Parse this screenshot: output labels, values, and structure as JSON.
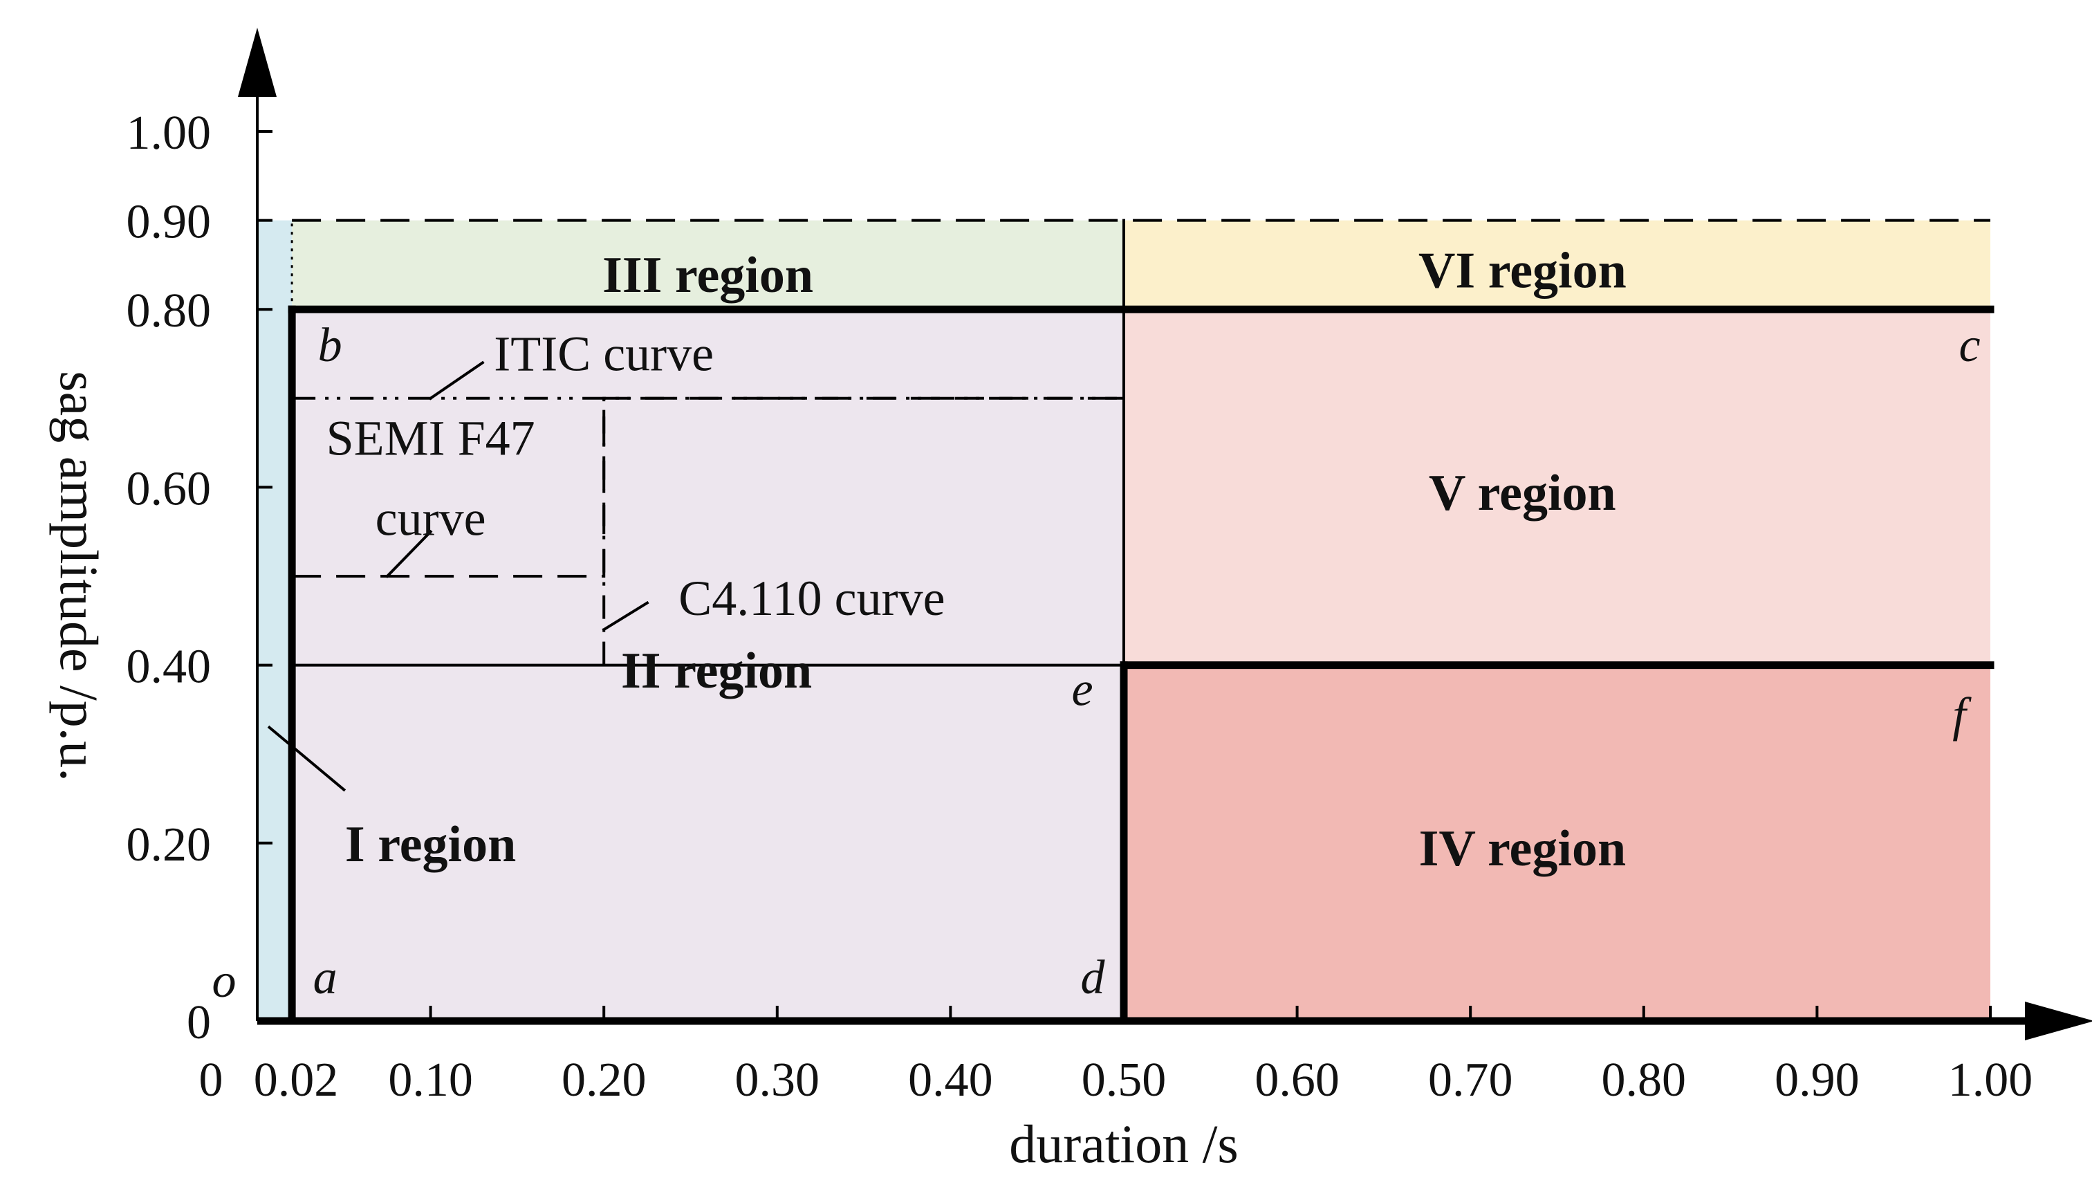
{
  "chart_data": {
    "type": "region-diagram",
    "title": "",
    "xlabel": "duration /s",
    "ylabel": "sag amplitude /p.u.",
    "xlim": [
      0,
      1.0
    ],
    "ylim": [
      0,
      1.0
    ],
    "x_ticks": [
      {
        "value": 0,
        "label": "0"
      },
      {
        "value": 0.02,
        "label": "0.02"
      },
      {
        "value": 0.1,
        "label": "0.10"
      },
      {
        "value": 0.2,
        "label": "0.20"
      },
      {
        "value": 0.3,
        "label": "0.30"
      },
      {
        "value": 0.4,
        "label": "0.40"
      },
      {
        "value": 0.5,
        "label": "0.50"
      },
      {
        "value": 0.6,
        "label": "0.60"
      },
      {
        "value": 0.7,
        "label": "0.70"
      },
      {
        "value": 0.8,
        "label": "0.80"
      },
      {
        "value": 0.9,
        "label": "0.90"
      },
      {
        "value": 1.0,
        "label": "1.00"
      }
    ],
    "y_ticks": [
      {
        "value": 0,
        "label": "0"
      },
      {
        "value": 0.2,
        "label": "0.20"
      },
      {
        "value": 0.4,
        "label": "0.40"
      },
      {
        "value": 0.6,
        "label": "0.60"
      },
      {
        "value": 0.8,
        "label": "0.80"
      },
      {
        "value": 0.9,
        "label": "0.90"
      },
      {
        "value": 1.0,
        "label": "1.00"
      }
    ],
    "origin_label": "o",
    "regions": [
      {
        "id": "I",
        "label": "I region",
        "x": [
          0,
          0.02
        ],
        "y": [
          0,
          0.9
        ],
        "color": "#d5eaf0",
        "label_at": [
          0.1,
          0.2
        ]
      },
      {
        "id": "II",
        "label": "II region",
        "x": [
          0.02,
          0.5
        ],
        "y": [
          0,
          0.8
        ],
        "color": "#ede6ee",
        "label_at": [
          0.265,
          0.395
        ]
      },
      {
        "id": "III",
        "label": "III region",
        "x": [
          0.02,
          0.5
        ],
        "y": [
          0.8,
          0.9
        ],
        "color": "#e6efde",
        "label_at": [
          0.26,
          0.84
        ]
      },
      {
        "id": "IV",
        "label": "IV region",
        "x": [
          0.5,
          1.0
        ],
        "y": [
          0,
          0.4
        ],
        "color": "#f2b9b4",
        "label_at": [
          0.73,
          0.195
        ]
      },
      {
        "id": "V",
        "label": "V region",
        "x": [
          0.5,
          1.0
        ],
        "y": [
          0.4,
          0.8
        ],
        "color": "#f8dcd9",
        "label_at": [
          0.73,
          0.595
        ]
      },
      {
        "id": "VI",
        "label": "VI region",
        "x": [
          0.5,
          1.0
        ],
        "y": [
          0.8,
          0.9
        ],
        "color": "#fcf0cb",
        "label_at": [
          0.73,
          0.845
        ]
      }
    ],
    "points": [
      {
        "label": "a",
        "x": 0.02,
        "y": 0
      },
      {
        "label": "b",
        "x": 0.02,
        "y": 0.8
      },
      {
        "label": "c",
        "x": 1.0,
        "y": 0.8
      },
      {
        "label": "d",
        "x": 0.5,
        "y": 0
      },
      {
        "label": "e",
        "x": 0.5,
        "y": 0.4
      },
      {
        "label": "f",
        "x": 1.0,
        "y": 0.4
      }
    ],
    "boundaries": [
      {
        "name": "a-b",
        "points": [
          [
            0.02,
            0
          ],
          [
            0.02,
            0.8
          ]
        ],
        "style": "thick"
      },
      {
        "name": "b-c",
        "points": [
          [
            0.02,
            0.8
          ],
          [
            1.0,
            0.8
          ]
        ],
        "style": "thick"
      },
      {
        "name": "a-d",
        "points": [
          [
            0.02,
            0
          ],
          [
            0.5,
            0
          ]
        ],
        "style": "thick"
      },
      {
        "name": "d-e",
        "points": [
          [
            0.5,
            0
          ],
          [
            0.5,
            0.4
          ]
        ],
        "style": "thick"
      },
      {
        "name": "e-f",
        "points": [
          [
            0.5,
            0.4
          ],
          [
            1.0,
            0.4
          ]
        ],
        "style": "thick"
      },
      {
        "name": "sag-threshold-0.9",
        "points": [
          [
            0.02,
            0.9
          ],
          [
            1.0,
            0.9
          ]
        ],
        "style": "dashed"
      },
      {
        "name": "divider-0.02",
        "points": [
          [
            0.02,
            0.8
          ],
          [
            0.02,
            0.9
          ]
        ],
        "style": "dotted"
      },
      {
        "name": "divider-0.50",
        "points": [
          [
            0.5,
            0.4
          ],
          [
            0.5,
            0.9
          ]
        ],
        "style": "thin"
      },
      {
        "name": "y-0.40-inner",
        "points": [
          [
            0.02,
            0.4
          ],
          [
            0.5,
            0.4
          ]
        ],
        "style": "thin"
      }
    ],
    "curves": [
      {
        "name": "ITIC curve",
        "points": [
          [
            0.02,
            0.7
          ],
          [
            0.5,
            0.7
          ]
        ],
        "style": "dashdotdot",
        "label_at": [
          0.2,
          0.75
        ],
        "leader": [
          [
            0.1,
            0.7
          ],
          [
            0.13,
            0.74
          ]
        ]
      },
      {
        "name": "SEMI F47 curve",
        "label_lines": [
          "SEMI F47",
          "curve"
        ],
        "points": [
          [
            0.02,
            0.5
          ],
          [
            0.2,
            0.5
          ],
          [
            0.2,
            0.7
          ],
          [
            0.5,
            0.7
          ]
        ],
        "style": "dashed",
        "label_at": [
          0.1,
          0.61
        ],
        "leader": [
          [
            0.075,
            0.5
          ],
          [
            0.1,
            0.55
          ]
        ]
      },
      {
        "name": "C4.110 curve",
        "points": [
          [
            0.2,
            0.4
          ],
          [
            0.2,
            0.7
          ]
        ],
        "style": "dashdot",
        "label_at": [
          0.32,
          0.475
        ],
        "leader": [
          [
            0.2,
            0.44
          ],
          [
            0.225,
            0.47
          ]
        ]
      }
    ],
    "region_I_leader": [
      [
        0.007,
        0.33
      ],
      [
        0.05,
        0.26
      ]
    ]
  }
}
